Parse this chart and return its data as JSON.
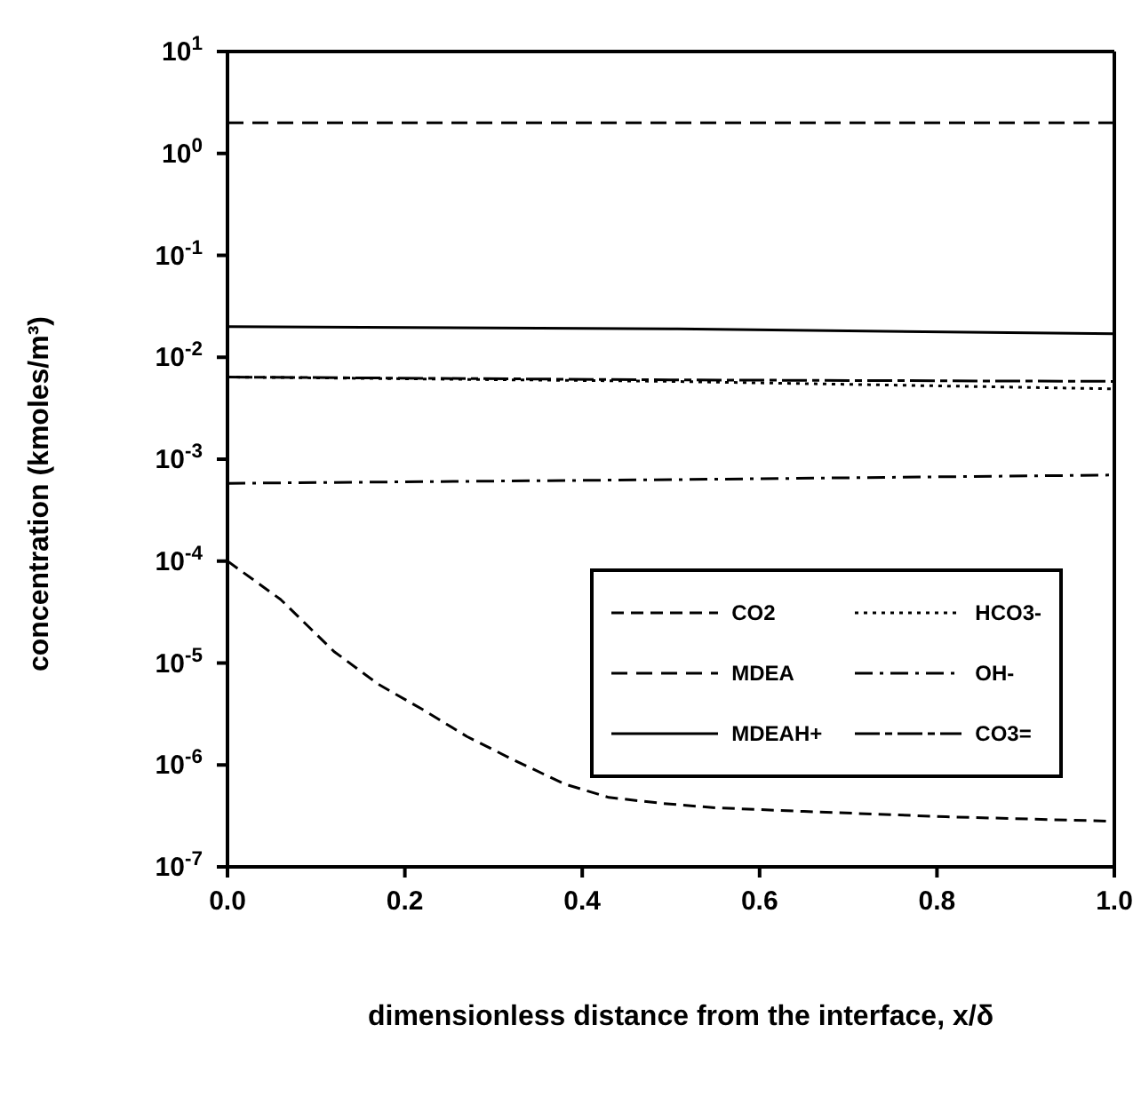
{
  "chart_data": {
    "type": "line",
    "xlabel": "dimensionless distance from the interface, x/δ",
    "ylabel": "concentration (kmoles/m³)",
    "log": "y",
    "xlim": [
      0,
      1
    ],
    "xticks": [
      {
        "value": 0,
        "label": "0.0"
      },
      0.2,
      0.4,
      0.6,
      0.8,
      {
        "value": 1,
        "label": "1.0"
      }
    ],
    "ylim": [
      1e-07,
      10
    ],
    "yticks": [
      {
        "value": 1e-07,
        "label": "10$^{-7}$"
      },
      {
        "value": 1e-06,
        "label": "10$^{-6}$"
      },
      {
        "value": 1e-05,
        "label": "10$^{-5}$"
      },
      {
        "value": 0.0001,
        "label": "10$^{-4}$"
      },
      {
        "value": 0.001,
        "label": "10$^{-3}$"
      },
      {
        "value": 0.01,
        "label": "10$^{-2}$"
      },
      {
        "value": 0.1,
        "label": "10$^{-1}$"
      },
      {
        "value": 1,
        "label": "10$^{0}$"
      },
      {
        "value": 10,
        "label": "10$^{1}$"
      }
    ],
    "grid": false,
    "legend": "right",
    "marker": "none",
    "series": [
      {
        "name": "CO2",
        "color": "#000000",
        "line_style": "dashed",
        "x": [
          0,
          0.06,
          0.12,
          0.17,
          0.22,
          0.27,
          0.32,
          0.38,
          0.43,
          0.49,
          0.55,
          0.65,
          0.81,
          1.0
        ],
        "values": [
          0.0001,
          4.2e-05,
          1.3e-05,
          6.2e-06,
          3.5e-06,
          1.9e-06,
          1.15e-06,
          6.5e-07,
          4.8e-07,
          4.2e-07,
          3.8e-07,
          3.5e-07,
          3.1e-07,
          2.8e-07
        ]
      },
      {
        "name": "MDEA",
        "color": "#000000",
        "line_style": "dashed",
        "x": [
          0,
          0.5,
          1
        ],
        "values": [
          2,
          2,
          2
        ]
      },
      {
        "name": "MDEAH+",
        "color": "#000000",
        "line_style": "solid",
        "x": [
          0,
          0.5,
          1
        ],
        "values": [
          0.02,
          0.019,
          0.017
        ]
      },
      {
        "name": "HCO3-",
        "color": "#000000",
        "line_style": "dotted",
        "x": [
          0,
          0.5,
          1
        ],
        "values": [
          0.0064,
          0.0058,
          0.0049
        ]
      },
      {
        "name": "OH-",
        "color": "#000000",
        "line_style": "dashdot",
        "x": [
          0,
          0.5,
          1
        ],
        "values": [
          0.00058,
          0.00063,
          0.0007
        ]
      },
      {
        "name": "CO3=",
        "color": "#000000",
        "line_style": "dashed",
        "x": [
          0,
          0.5,
          1
        ],
        "values": [
          0.0064,
          0.006,
          0.0058
        ]
      }
    ]
  }
}
